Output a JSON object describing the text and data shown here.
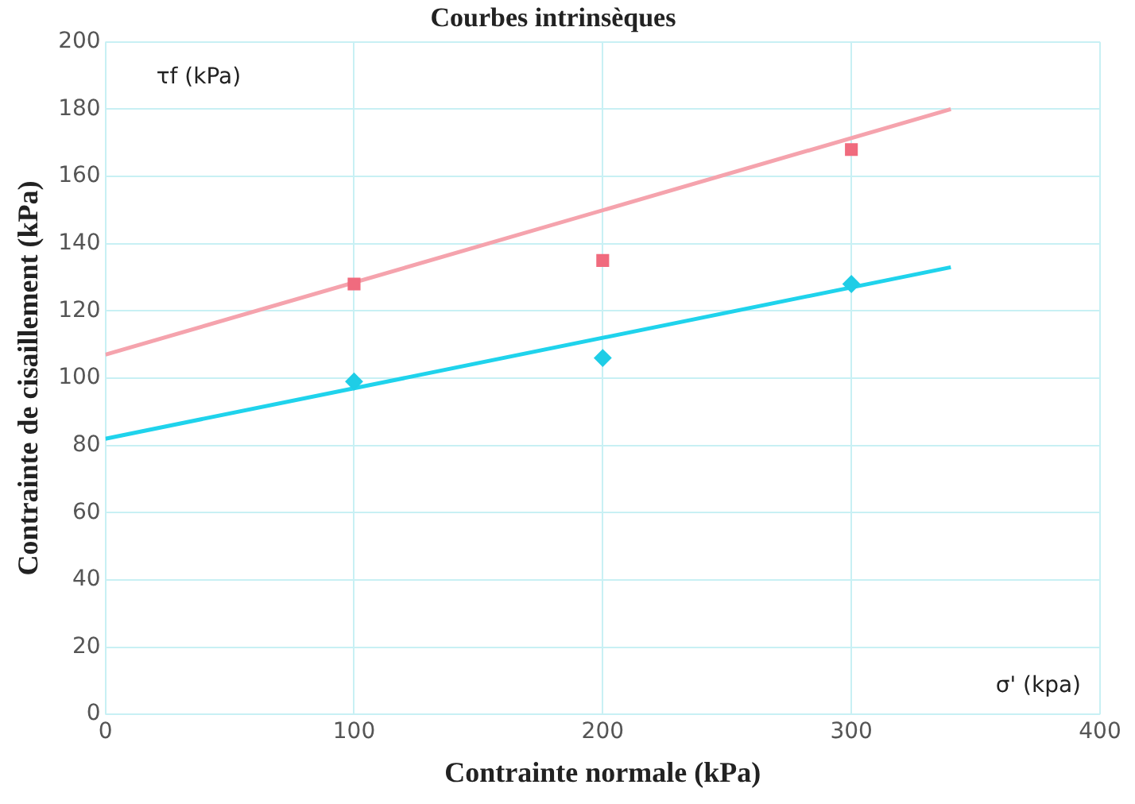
{
  "chart_data": {
    "type": "scatter",
    "title": "Courbes intrinsèques",
    "xlabel": "Contrainte normale (kPa)",
    "ylabel": "Contrainte de cisaillement (kPa)",
    "annotations": [
      "τf (kPa)",
      "σ' (kpa)"
    ],
    "series": [
      {
        "type": "scatter",
        "marker": "square",
        "color": "#f06b7e",
        "x": [
          100,
          200,
          300
        ],
        "values": [
          128,
          135,
          168
        ]
      },
      {
        "type": "scatter",
        "marker": "diamond",
        "color": "#1fcde6",
        "x": [
          100,
          200,
          300
        ],
        "values": [
          99,
          106,
          128
        ]
      },
      {
        "type": "line",
        "marker": "none",
        "color": "#f5a3ad",
        "x": [
          0,
          340
        ],
        "values": [
          107,
          180
        ]
      },
      {
        "type": "line",
        "marker": "none",
        "color": "#1fd3ec",
        "x": [
          0,
          340
        ],
        "values": [
          82,
          133
        ]
      }
    ],
    "xlim": [
      0,
      400
    ],
    "xticks": [
      0,
      100,
      200,
      300,
      400
    ],
    "ylim": [
      0,
      200
    ],
    "yticks": [
      0,
      20,
      40,
      60,
      80,
      100,
      120,
      140,
      160,
      180,
      200
    ],
    "grid": true,
    "legend": false
  }
}
